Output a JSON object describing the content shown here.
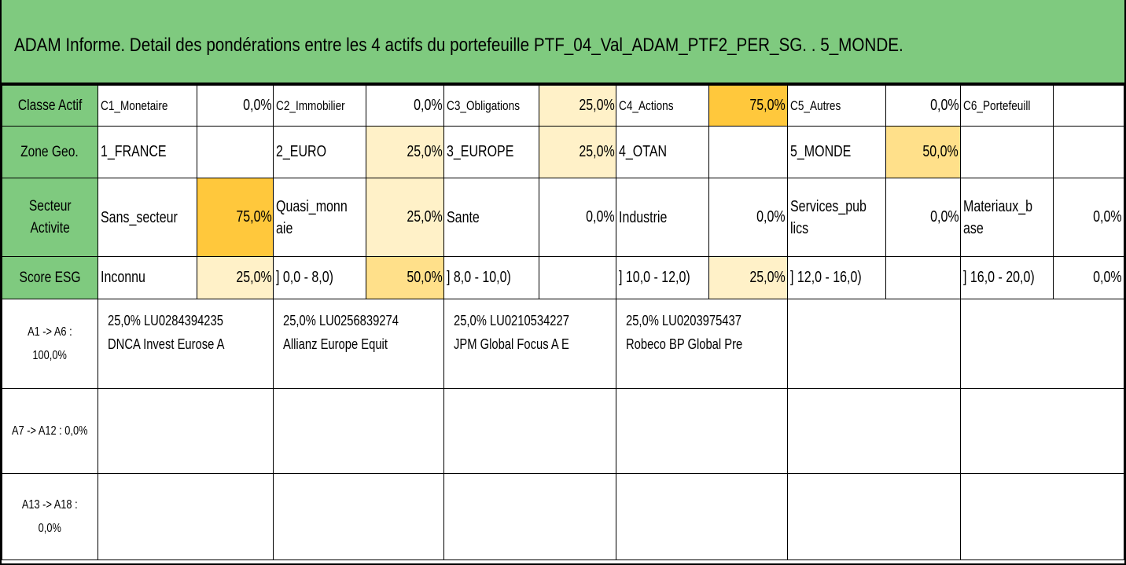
{
  "title": "ADAM Informe. Detail des pondérations entre les 4 actifs du portefeuille PTF_04_Val_ADAM_PTF2_PER_SG. . 5_MONDE.",
  "rows": {
    "classe": {
      "header": "Classe Actif",
      "cells": [
        {
          "label": "C1_Monetaire",
          "value": "0,0%"
        },
        {
          "label": "C2_Immobilier",
          "value": "0,0%"
        },
        {
          "label": "C3_Obligations",
          "value": "25,0%"
        },
        {
          "label": "C4_Actions",
          "value": "75,0%"
        },
        {
          "label": "C5_Autres",
          "value": "0,0%"
        },
        {
          "label": "C6_Portefeuill",
          "value": ""
        }
      ]
    },
    "zone": {
      "header": "Zone Geo.",
      "cells": [
        {
          "label": "1_FRANCE",
          "value": ""
        },
        {
          "label": "2_EURO",
          "value": "25,0%"
        },
        {
          "label": "3_EUROPE",
          "value": "25,0%"
        },
        {
          "label": "4_OTAN",
          "value": ""
        },
        {
          "label": "5_MONDE",
          "value": "50,0%"
        },
        {
          "label": "",
          "value": ""
        }
      ]
    },
    "secteur": {
      "header_line1": "Secteur",
      "header_line2": "Activite",
      "cells": [
        {
          "label": "Sans_secteur",
          "label2": "",
          "value": "75,0%"
        },
        {
          "label": "Quasi_monn",
          "label2": "aie",
          "value": "25,0%"
        },
        {
          "label": "Sante",
          "label2": "",
          "value": "0,0%"
        },
        {
          "label": "Industrie",
          "label2": "",
          "value": "0,0%"
        },
        {
          "label": "Services_pub",
          "label2": "lics",
          "value": "0,0%"
        },
        {
          "label": "Materiaux_b",
          "label2": "ase",
          "value": "0,0%"
        }
      ]
    },
    "esg": {
      "header": "Score ESG",
      "cells": [
        {
          "label": "Inconnu",
          "value": "25,0%"
        },
        {
          "label": "] 0,0 - 8,0)",
          "value": "50,0%"
        },
        {
          "label": "] 8,0 - 10,0)",
          "value": ""
        },
        {
          "label": "] 10,0 - 12,0)",
          "value": "25,0%"
        },
        {
          "label": "] 12,0 - 16,0)",
          "value": ""
        },
        {
          "label": "] 16,0 - 20,0)",
          "value": "0,0%"
        }
      ]
    }
  },
  "assets": [
    {
      "label_line1": "A1 -> A6 :",
      "label_line2": "100,0%",
      "items": [
        {
          "line1": "25,0% LU0284394235",
          "line2": "DNCA Invest Eurose A"
        },
        {
          "line1": "25,0% LU0256839274",
          "line2": "Allianz Europe Equit"
        },
        {
          "line1": "25,0% LU0210534227",
          "line2": "JPM Global Focus A E"
        },
        {
          "line1": "25,0% LU0203975437",
          "line2": "Robeco BP Global Pre"
        },
        {
          "line1": "",
          "line2": ""
        },
        {
          "line1": "",
          "line2": ""
        }
      ]
    },
    {
      "label_line1": "A7 -> A12 : 0,0%",
      "label_line2": ""
    },
    {
      "label_line1": "A13 -> A18 :",
      "label_line2": "0,0%"
    }
  ]
}
